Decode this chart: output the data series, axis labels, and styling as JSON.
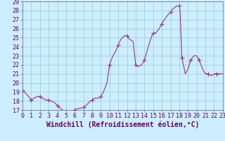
{
  "title": "",
  "xlabel": "Windchill (Refroidissement éolien,°C)",
  "ylabel": "",
  "background_color": "#cceeff",
  "line_color": "#993399",
  "grid_color": "#99cccc",
  "xlim": [
    0,
    23
  ],
  "ylim": [
    17,
    29
  ],
  "yticks": [
    17,
    18,
    19,
    20,
    21,
    22,
    23,
    24,
    25,
    26,
    27,
    28,
    29
  ],
  "xticks": [
    0,
    1,
    2,
    3,
    4,
    5,
    6,
    7,
    8,
    9,
    10,
    11,
    12,
    13,
    14,
    15,
    16,
    17,
    18,
    19,
    20,
    21,
    22,
    23
  ],
  "x": [
    0,
    0.3,
    0.7,
    1,
    1.3,
    1.7,
    2,
    2.3,
    2.7,
    3,
    3.3,
    3.7,
    4,
    4.3,
    4.7,
    5,
    5.3,
    5.7,
    6,
    6.3,
    6.7,
    7,
    7.3,
    7.7,
    8,
    8.3,
    8.7,
    9,
    9.3,
    9.7,
    10,
    10.3,
    10.7,
    11,
    11.3,
    11.7,
    12,
    12.3,
    12.7,
    13,
    13.3,
    13.7,
    14,
    14.3,
    14.7,
    15,
    15.3,
    15.7,
    16,
    16.3,
    16.7,
    17,
    17.3,
    17.7,
    18,
    18.05,
    18.1,
    18.3,
    18.7,
    19,
    19.3,
    19.7,
    20,
    20.3,
    20.7,
    21,
    21.3,
    21.7,
    22,
    22.3,
    22.7,
    23
  ],
  "y": [
    19.2,
    18.9,
    18.5,
    18.1,
    18.3,
    18.5,
    18.5,
    18.3,
    18.1,
    18.1,
    18.0,
    17.8,
    17.5,
    17.2,
    16.95,
    16.85,
    16.82,
    16.82,
    17.0,
    17.15,
    17.2,
    17.3,
    17.5,
    17.9,
    18.1,
    18.3,
    18.3,
    18.5,
    19.0,
    20.0,
    22.0,
    22.8,
    23.5,
    24.2,
    24.8,
    25.2,
    25.2,
    24.8,
    24.6,
    22.0,
    21.8,
    22.0,
    22.5,
    23.5,
    24.8,
    25.5,
    25.5,
    26.0,
    26.5,
    27.0,
    27.5,
    27.8,
    28.2,
    28.5,
    28.5,
    28.3,
    28.0,
    22.8,
    21.0,
    21.5,
    22.5,
    23.0,
    23.0,
    22.5,
    21.5,
    21.0,
    21.0,
    20.8,
    21.0,
    21.0,
    21.0,
    21.0
  ],
  "marker": "+",
  "marker_indices": [
    0,
    3,
    6,
    9,
    12,
    15,
    18,
    21,
    24,
    27,
    30,
    33,
    36,
    39,
    42,
    45,
    48,
    51,
    54,
    57,
    60,
    63,
    66,
    69
  ],
  "marker_size": 4,
  "linewidth": 0.8,
  "font_color": "#660066",
  "xlabel_fontsize": 7,
  "tick_fontsize": 6
}
